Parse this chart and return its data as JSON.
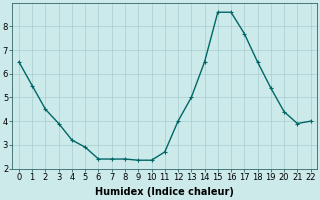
{
  "x": [
    0,
    1,
    2,
    3,
    4,
    5,
    6,
    7,
    8,
    9,
    10,
    11,
    12,
    13,
    14,
    15,
    16,
    17,
    18,
    19,
    20,
    21,
    22
  ],
  "y": [
    6.5,
    5.5,
    4.5,
    3.9,
    3.2,
    2.9,
    2.4,
    2.4,
    2.4,
    2.35,
    2.35,
    2.7,
    4.0,
    5.0,
    6.5,
    8.6,
    8.6,
    7.7,
    6.5,
    5.4,
    4.4,
    3.9,
    4.0
  ],
  "line_color": "#006666",
  "marker": "+",
  "markersize": 3,
  "linewidth": 1.0,
  "bg_color": "#cceaea",
  "grid_color": "#aacccc",
  "xlabel": "Humidex (Indice chaleur)",
  "ylim": [
    2,
    9
  ],
  "xlim": [
    -0.5,
    22.5
  ],
  "yticks": [
    2,
    3,
    4,
    5,
    6,
    7,
    8
  ],
  "xticks": [
    0,
    1,
    2,
    3,
    4,
    5,
    6,
    7,
    8,
    9,
    10,
    11,
    12,
    13,
    14,
    15,
    16,
    17,
    18,
    19,
    20,
    21,
    22
  ],
  "xtick_labels": [
    "0",
    "1",
    "2",
    "3",
    "4",
    "5",
    "6",
    "7",
    "8",
    "9",
    "10",
    "11",
    "12",
    "13",
    "14",
    "15",
    "16",
    "17",
    "18",
    "19",
    "20",
    "21",
    "22"
  ],
  "xlabel_fontsize": 7,
  "tick_fontsize": 6
}
